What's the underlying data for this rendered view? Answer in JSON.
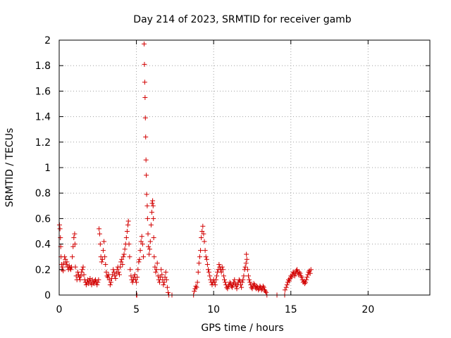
{
  "chart_data": {
    "type": "scatter",
    "title": "Day 214 of 2023, SRMTID for receiver gamb",
    "xlabel": "GPS time / hours",
    "ylabel": "SRMTID / TECUs",
    "xlim": [
      0,
      24
    ],
    "ylim": [
      0,
      2
    ],
    "xticks": [
      0,
      5,
      10,
      15,
      20
    ],
    "xtick_labels": [
      "0",
      "5",
      "10",
      "15",
      "20"
    ],
    "yticks": [
      0,
      0.2,
      0.4,
      0.6,
      0.8,
      1,
      1.2,
      1.4,
      1.6,
      1.8,
      2
    ],
    "ytick_labels": [
      "0",
      "0.2",
      "0.4",
      "0.6",
      "0.8",
      "1",
      "1.2",
      "1.4",
      "1.6",
      "1.8",
      "2"
    ],
    "grid": true,
    "marker": "+",
    "color": "#d20000",
    "series": [
      {
        "name": "SRMTID",
        "points": [
          [
            0.02,
            0.55
          ],
          [
            0.05,
            0.52
          ],
          [
            0.08,
            0.45
          ],
          [
            0.1,
            0.38
          ],
          [
            0.12,
            0.3
          ],
          [
            0.15,
            0.24
          ],
          [
            0.18,
            0.2
          ],
          [
            0.22,
            0.22
          ],
          [
            0.26,
            0.19
          ],
          [
            0.3,
            0.25
          ],
          [
            0.35,
            0.3
          ],
          [
            0.4,
            0.28
          ],
          [
            0.45,
            0.24
          ],
          [
            0.5,
            0.26
          ],
          [
            0.55,
            0.22
          ],
          [
            0.6,
            0.2
          ],
          [
            0.65,
            0.23
          ],
          [
            0.7,
            0.21
          ],
          [
            0.75,
            0.2
          ],
          [
            0.8,
            0.22
          ],
          [
            0.85,
            0.3
          ],
          [
            0.9,
            0.38
          ],
          [
            0.95,
            0.45
          ],
          [
            1.0,
            0.48
          ],
          [
            1.02,
            0.4
          ],
          [
            1.05,
            0.22
          ],
          [
            1.1,
            0.15
          ],
          [
            1.15,
            0.12
          ],
          [
            1.2,
            0.18
          ],
          [
            1.25,
            0.16
          ],
          [
            1.3,
            0.14
          ],
          [
            1.35,
            0.12
          ],
          [
            1.4,
            0.15
          ],
          [
            1.45,
            0.18
          ],
          [
            1.5,
            0.2
          ],
          [
            1.55,
            0.22
          ],
          [
            1.6,
            0.16
          ],
          [
            1.65,
            0.12
          ],
          [
            1.7,
            0.1
          ],
          [
            1.75,
            0.08
          ],
          [
            1.8,
            0.1
          ],
          [
            1.85,
            0.12
          ],
          [
            1.9,
            0.09
          ],
          [
            1.95,
            0.11
          ],
          [
            2.0,
            0.13
          ],
          [
            2.05,
            0.1
          ],
          [
            2.1,
            0.08
          ],
          [
            2.15,
            0.12
          ],
          [
            2.2,
            0.1
          ],
          [
            2.25,
            0.09
          ],
          [
            2.3,
            0.11
          ],
          [
            2.35,
            0.12
          ],
          [
            2.4,
            0.1
          ],
          [
            2.45,
            0.08
          ],
          [
            2.5,
            0.1
          ],
          [
            2.55,
            0.12
          ],
          [
            2.58,
            0.52
          ],
          [
            2.62,
            0.48
          ],
          [
            2.66,
            0.4
          ],
          [
            2.7,
            0.3
          ],
          [
            2.75,
            0.26
          ],
          [
            2.8,
            0.28
          ],
          [
            2.85,
            0.35
          ],
          [
            2.9,
            0.42
          ],
          [
            2.95,
            0.3
          ],
          [
            3.0,
            0.24
          ],
          [
            3.05,
            0.18
          ],
          [
            3.1,
            0.15
          ],
          [
            3.15,
            0.14
          ],
          [
            3.2,
            0.16
          ],
          [
            3.25,
            0.12
          ],
          [
            3.3,
            0.08
          ],
          [
            3.35,
            0.1
          ],
          [
            3.4,
            0.13
          ],
          [
            3.45,
            0.16
          ],
          [
            3.5,
            0.2
          ],
          [
            3.55,
            0.18
          ],
          [
            3.6,
            0.15
          ],
          [
            3.65,
            0.13
          ],
          [
            3.7,
            0.17
          ],
          [
            3.75,
            0.2
          ],
          [
            3.8,
            0.22
          ],
          [
            3.85,
            0.18
          ],
          [
            3.9,
            0.16
          ],
          [
            3.95,
            0.22
          ],
          [
            4.0,
            0.26
          ],
          [
            4.05,
            0.28
          ],
          [
            4.1,
            0.24
          ],
          [
            4.15,
            0.3
          ],
          [
            4.2,
            0.32
          ],
          [
            4.25,
            0.36
          ],
          [
            4.3,
            0.4
          ],
          [
            4.35,
            0.45
          ],
          [
            4.4,
            0.5
          ],
          [
            4.45,
            0.55
          ],
          [
            4.48,
            0.58
          ],
          [
            4.52,
            0.4
          ],
          [
            4.56,
            0.3
          ],
          [
            4.6,
            0.2
          ],
          [
            4.65,
            0.15
          ],
          [
            4.7,
            0.12
          ],
          [
            4.75,
            0.1
          ],
          [
            4.8,
            0.12
          ],
          [
            4.85,
            0.14
          ],
          [
            4.9,
            0.16
          ],
          [
            4.95,
            0.12
          ],
          [
            5.0,
            0.1
          ],
          [
            5.05,
            0.14
          ],
          [
            5.1,
            0.2
          ],
          [
            5.15,
            0.26
          ],
          [
            5.2,
            0.28
          ],
          [
            5.25,
            0.35
          ],
          [
            5.3,
            0.42
          ],
          [
            5.35,
            0.46
          ],
          [
            5.4,
            0.4
          ],
          [
            5.45,
            0.3
          ],
          [
            5.5,
            1.97
          ],
          [
            5.52,
            1.81
          ],
          [
            5.54,
            1.67
          ],
          [
            5.56,
            1.55
          ],
          [
            5.58,
            1.39
          ],
          [
            5.6,
            1.24
          ],
          [
            5.62,
            1.06
          ],
          [
            5.64,
            0.94
          ],
          [
            5.66,
            0.79
          ],
          [
            5.7,
            0.7
          ],
          [
            5.72,
            0.6
          ],
          [
            5.75,
            0.48
          ],
          [
            5.78,
            0.38
          ],
          [
            5.82,
            0.32
          ],
          [
            5.86,
            0.36
          ],
          [
            5.9,
            0.42
          ],
          [
            5.95,
            0.55
          ],
          [
            6.0,
            0.65
          ],
          [
            6.02,
            0.72
          ],
          [
            6.05,
            0.74
          ],
          [
            6.08,
            0.7
          ],
          [
            6.1,
            0.6
          ],
          [
            6.12,
            0.45
          ],
          [
            6.15,
            0.3
          ],
          [
            6.2,
            0.22
          ],
          [
            6.25,
            0.18
          ],
          [
            6.3,
            0.2
          ],
          [
            6.35,
            0.25
          ],
          [
            6.4,
            0.15
          ],
          [
            6.45,
            0.12
          ],
          [
            6.5,
            0.1
          ],
          [
            6.55,
            0.14
          ],
          [
            6.6,
            0.2
          ],
          [
            6.65,
            0.16
          ],
          [
            6.7,
            0.12
          ],
          [
            6.75,
            0.08
          ],
          [
            6.8,
            0.1
          ],
          [
            6.85,
            0.14
          ],
          [
            6.9,
            0.18
          ],
          [
            6.95,
            0.12
          ],
          [
            7.0,
            0.06
          ],
          [
            7.05,
            0.02
          ],
          [
            5.0,
            0.0
          ],
          [
            5.03,
            0.0
          ],
          [
            7.1,
            0.0
          ],
          [
            7.3,
            0.0
          ],
          [
            8.7,
            0.0
          ],
          [
            8.75,
            0.03
          ],
          [
            8.8,
            0.05
          ],
          [
            8.85,
            0.07
          ],
          [
            8.9,
            0.06
          ],
          [
            8.95,
            0.1
          ],
          [
            9.0,
            0.18
          ],
          [
            9.05,
            0.25
          ],
          [
            9.1,
            0.3
          ],
          [
            9.15,
            0.35
          ],
          [
            9.2,
            0.45
          ],
          [
            9.25,
            0.5
          ],
          [
            9.3,
            0.54
          ],
          [
            9.35,
            0.48
          ],
          [
            9.4,
            0.42
          ],
          [
            9.45,
            0.35
          ],
          [
            9.5,
            0.3
          ],
          [
            9.55,
            0.28
          ],
          [
            9.6,
            0.24
          ],
          [
            9.65,
            0.2
          ],
          [
            9.7,
            0.18
          ],
          [
            9.75,
            0.15
          ],
          [
            9.8,
            0.12
          ],
          [
            9.85,
            0.1
          ],
          [
            9.9,
            0.08
          ],
          [
            9.95,
            0.1
          ],
          [
            10.0,
            0.12
          ],
          [
            10.05,
            0.1
          ],
          [
            10.1,
            0.08
          ],
          [
            10.15,
            0.12
          ],
          [
            10.2,
            0.15
          ],
          [
            10.25,
            0.18
          ],
          [
            10.3,
            0.2
          ],
          [
            10.35,
            0.24
          ],
          [
            10.4,
            0.22
          ],
          [
            10.45,
            0.2
          ],
          [
            10.5,
            0.18
          ],
          [
            10.55,
            0.22
          ],
          [
            10.6,
            0.2
          ],
          [
            10.65,
            0.15
          ],
          [
            10.7,
            0.12
          ],
          [
            10.75,
            0.1
          ],
          [
            10.8,
            0.08
          ],
          [
            10.85,
            0.06
          ],
          [
            10.9,
            0.05
          ],
          [
            10.95,
            0.07
          ],
          [
            11.0,
            0.08
          ],
          [
            11.05,
            0.1
          ],
          [
            11.1,
            0.09
          ],
          [
            11.15,
            0.07
          ],
          [
            11.2,
            0.06
          ],
          [
            11.25,
            0.08
          ],
          [
            11.3,
            0.1
          ],
          [
            11.35,
            0.12
          ],
          [
            11.4,
            0.09
          ],
          [
            11.45,
            0.07
          ],
          [
            11.5,
            0.05
          ],
          [
            11.55,
            0.08
          ],
          [
            11.6,
            0.1
          ],
          [
            11.65,
            0.12
          ],
          [
            11.7,
            0.11
          ],
          [
            11.75,
            0.08
          ],
          [
            11.8,
            0.06
          ],
          [
            11.85,
            0.1
          ],
          [
            11.9,
            0.12
          ],
          [
            11.95,
            0.15
          ],
          [
            12.0,
            0.2
          ],
          [
            12.05,
            0.22
          ],
          [
            12.1,
            0.25
          ],
          [
            12.12,
            0.32
          ],
          [
            12.15,
            0.28
          ],
          [
            12.2,
            0.2
          ],
          [
            12.25,
            0.15
          ],
          [
            12.3,
            0.12
          ],
          [
            12.35,
            0.1
          ],
          [
            12.4,
            0.08
          ],
          [
            12.45,
            0.06
          ],
          [
            12.5,
            0.05
          ],
          [
            12.55,
            0.07
          ],
          [
            12.6,
            0.09
          ],
          [
            12.65,
            0.08
          ],
          [
            12.7,
            0.06
          ],
          [
            12.75,
            0.05
          ],
          [
            12.8,
            0.07
          ],
          [
            12.85,
            0.06
          ],
          [
            12.9,
            0.04
          ],
          [
            12.95,
            0.05
          ],
          [
            13.0,
            0.07
          ],
          [
            13.05,
            0.06
          ],
          [
            13.1,
            0.04
          ],
          [
            13.15,
            0.05
          ],
          [
            13.2,
            0.07
          ],
          [
            13.25,
            0.06
          ],
          [
            13.3,
            0.04
          ],
          [
            13.35,
            0.03
          ],
          [
            13.4,
            0.02
          ],
          [
            13.45,
            0.0
          ],
          [
            14.1,
            0.0
          ],
          [
            14.6,
            0.0
          ],
          [
            14.62,
            0.04
          ],
          [
            14.7,
            0.06
          ],
          [
            14.75,
            0.08
          ],
          [
            14.8,
            0.1
          ],
          [
            14.85,
            0.12
          ],
          [
            14.9,
            0.11
          ],
          [
            14.95,
            0.13
          ],
          [
            15.0,
            0.15
          ],
          [
            15.05,
            0.14
          ],
          [
            15.1,
            0.16
          ],
          [
            15.15,
            0.18
          ],
          [
            15.2,
            0.17
          ],
          [
            15.25,
            0.15
          ],
          [
            15.3,
            0.17
          ],
          [
            15.35,
            0.19
          ],
          [
            15.4,
            0.2
          ],
          [
            15.45,
            0.18
          ],
          [
            15.5,
            0.16
          ],
          [
            15.55,
            0.18
          ],
          [
            15.6,
            0.17
          ],
          [
            15.65,
            0.15
          ],
          [
            15.7,
            0.14
          ],
          [
            15.75,
            0.12
          ],
          [
            15.8,
            0.1
          ],
          [
            15.85,
            0.11
          ],
          [
            15.9,
            0.09
          ],
          [
            15.95,
            0.1
          ],
          [
            16.0,
            0.12
          ],
          [
            16.05,
            0.14
          ],
          [
            16.1,
            0.16
          ],
          [
            16.15,
            0.18
          ],
          [
            16.2,
            0.19
          ],
          [
            16.25,
            0.17
          ],
          [
            16.3,
            0.2
          ]
        ]
      }
    ]
  }
}
